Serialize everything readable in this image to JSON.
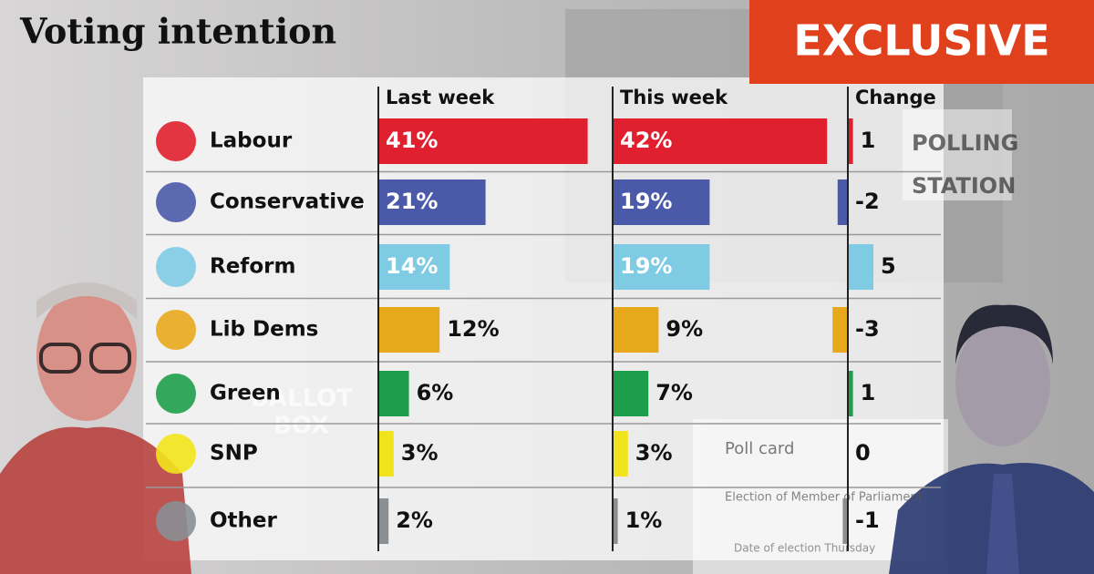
{
  "title": "Voting intention",
  "badge": "EXCLUSIVE",
  "background_texts": [
    "BALLOT",
    "BOX",
    "POLLING",
    "STATION",
    "Poll card",
    "Election of Member of Parliament",
    "Date of election Thursday"
  ],
  "chart_data": {
    "type": "bar",
    "categories": [
      "Labour",
      "Conservative",
      "Reform",
      "Lib Dems",
      "Green",
      "SNP",
      "Other"
    ],
    "colors": [
      "#e0202e",
      "#4a5aa8",
      "#7ecbe3",
      "#e8a81c",
      "#1e9e4a",
      "#f2e41c",
      "#8a8f93"
    ],
    "series": [
      {
        "name": "Last week",
        "values": [
          41,
          21,
          14,
          12,
          6,
          3,
          2
        ],
        "value_labels": [
          "41%",
          "21%",
          "14%",
          "12%",
          "6%",
          "3%",
          "2%"
        ]
      },
      {
        "name": "This week",
        "values": [
          42,
          19,
          19,
          9,
          7,
          3,
          1
        ],
        "value_labels": [
          "42%",
          "19%",
          "19%",
          "9%",
          "7%",
          "3%",
          "1%"
        ]
      },
      {
        "name": "Change",
        "values": [
          1,
          -2,
          5,
          -3,
          1,
          0,
          -1
        ]
      }
    ]
  }
}
